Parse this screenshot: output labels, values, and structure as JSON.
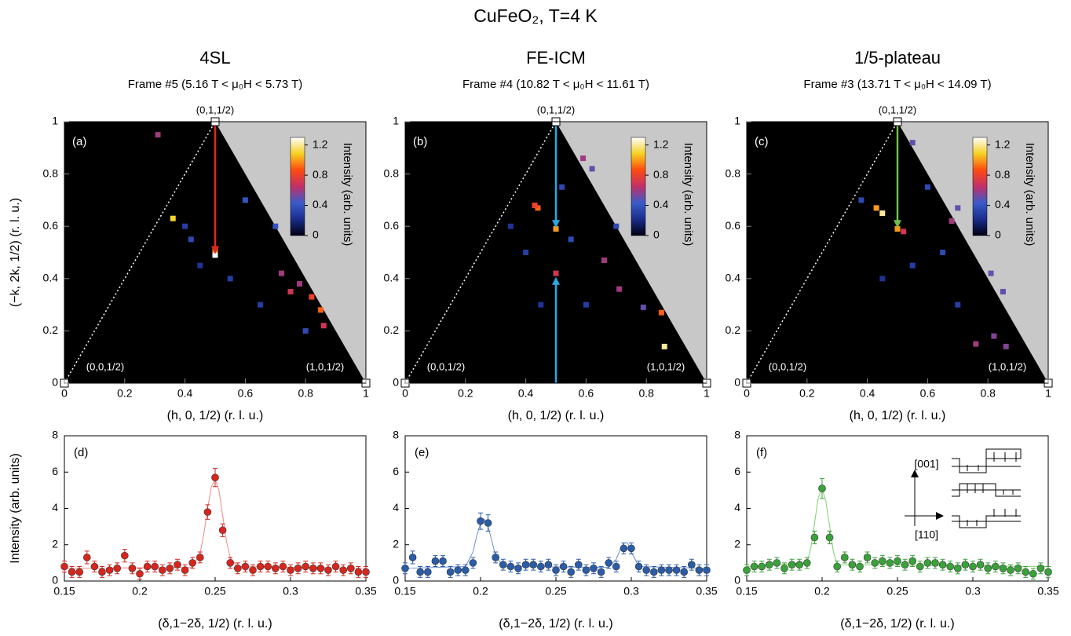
{
  "figure_title": "CuFeO₂, T=4 K",
  "chart_data": [
    {
      "type": "heatmap",
      "title": "4SL",
      "subtitle": "Frame #5 (5.16 T < μ₀H < 5.73 T)",
      "panel_label": "(a)",
      "x_label": "(h, 0, 1/2) (r. l. u.)",
      "y_label": "(−k, 2k, 1/2) (r. l. u.)",
      "xlim": [
        0,
        1
      ],
      "ylim": [
        0,
        1
      ],
      "xticks": [
        0,
        0.2,
        0.4,
        0.6,
        0.8,
        1
      ],
      "yticks": [
        0,
        0.2,
        0.4,
        0.6,
        0.8,
        1
      ],
      "corner_labels": [
        "(0,1,1/2)",
        "(0,0,1/2)",
        "(1,0,1/2)"
      ],
      "x": [
        0.36,
        0.5,
        0.31,
        0.5,
        0.72,
        0.75,
        0.78,
        0.82,
        0.85,
        0.86,
        0.42,
        0.4,
        0.6,
        0.55,
        0.45,
        0.65,
        0.7,
        0.8
      ],
      "y": [
        0.63,
        0.49,
        0.95,
        0.51,
        0.42,
        0.35,
        0.38,
        0.33,
        0.28,
        0.22,
        0.55,
        0.6,
        0.7,
        0.4,
        0.45,
        0.3,
        0.6,
        0.2
      ],
      "values": [
        1.1,
        1.3,
        0.6,
        1.0,
        0.6,
        0.7,
        0.6,
        0.8,
        0.9,
        0.7,
        0.35,
        0.3,
        0.4,
        0.3,
        0.25,
        0.3,
        0.4,
        0.35
      ],
      "arrows": [
        {
          "color": "#e52521",
          "from": [
            0.5,
            1
          ],
          "to": [
            0.5,
            0.5
          ]
        }
      ],
      "colorbar": {
        "label": "Intensity (arb. units)",
        "lim": [
          0,
          1.3
        ],
        "ticks": [
          0,
          0.4,
          0.8,
          1.2
        ],
        "colormap": [
          "#000010",
          "#1a2c8c",
          "#3a5bc8",
          "#c0306a",
          "#ff4a10",
          "#f5d020",
          "#ffffff"
        ]
      }
    },
    {
      "type": "heatmap",
      "title": "FE-ICM",
      "subtitle": "Frame #4 (10.82 T < μ₀H < 11.61 T)",
      "panel_label": "(b)",
      "x_label": "(h, 0, 1/2) (r. l. u.)",
      "xlim": [
        0,
        1
      ],
      "ylim": [
        0,
        1
      ],
      "xticks": [
        0,
        0.2,
        0.4,
        0.6,
        0.8,
        1
      ],
      "yticks": [
        0,
        0.2,
        0.4,
        0.6,
        0.8,
        1
      ],
      "corner_labels": [
        "(0,1,1/2)",
        "(0,0,1/2)",
        "(1,0,1/2)"
      ],
      "x": [
        0.44,
        0.43,
        0.5,
        0.5,
        0.59,
        0.62,
        0.66,
        0.71,
        0.85,
        0.86,
        0.79,
        0.55,
        0.4,
        0.6,
        0.45,
        0.7,
        0.52,
        0.35
      ],
      "y": [
        0.67,
        0.68,
        0.59,
        0.42,
        0.86,
        0.82,
        0.47,
        0.36,
        0.27,
        0.14,
        0.29,
        0.55,
        0.5,
        0.3,
        0.3,
        0.6,
        0.75,
        0.6
      ],
      "values": [
        0.9,
        0.8,
        1.0,
        0.7,
        0.6,
        0.5,
        0.6,
        0.6,
        0.9,
        1.2,
        0.5,
        0.35,
        0.3,
        0.3,
        0.25,
        0.35,
        0.35,
        0.25
      ],
      "arrows": [
        {
          "color": "#29a8e0",
          "from": [
            0.5,
            1
          ],
          "to": [
            0.5,
            0.6
          ]
        },
        {
          "color": "#29a8e0",
          "from": [
            0.5,
            0
          ],
          "to": [
            0.5,
            0.4
          ]
        }
      ],
      "colorbar": {
        "label": "Intensity (arb. units)",
        "lim": [
          0,
          1.3
        ],
        "ticks": [
          0,
          0.4,
          0.8,
          1.2
        ],
        "colormap": [
          "#000010",
          "#1a2c8c",
          "#3a5bc8",
          "#c0306a",
          "#ff4a10",
          "#f5d020",
          "#ffffff"
        ]
      }
    },
    {
      "type": "heatmap",
      "title": "1/5-plateau",
      "subtitle": "Frame #3 (13.71 T < μ₀H < 14.09 T)",
      "panel_label": "(c)",
      "x_label": "(h, 0, 1/2) (r. l. u.)",
      "xlim": [
        0,
        1
      ],
      "ylim": [
        0,
        1
      ],
      "xticks": [
        0,
        0.2,
        0.4,
        0.6,
        0.8,
        1
      ],
      "yticks": [
        0,
        0.2,
        0.4,
        0.6,
        0.8,
        1
      ],
      "corner_labels": [
        "(0,1,1/2)",
        "(0,0,1/2)",
        "(1,0,1/2)"
      ],
      "x": [
        0.43,
        0.45,
        0.5,
        0.52,
        0.55,
        0.68,
        0.7,
        0.76,
        0.82,
        0.86,
        0.81,
        0.85,
        0.38,
        0.6,
        0.55,
        0.7,
        0.45,
        0.65
      ],
      "y": [
        0.67,
        0.65,
        0.59,
        0.58,
        0.92,
        0.62,
        0.67,
        0.15,
        0.18,
        0.14,
        0.42,
        0.35,
        0.7,
        0.75,
        0.45,
        0.3,
        0.4,
        0.5
      ],
      "values": [
        1.0,
        1.2,
        1.0,
        0.7,
        0.5,
        0.6,
        0.5,
        0.6,
        0.55,
        0.55,
        0.5,
        0.5,
        0.35,
        0.35,
        0.3,
        0.3,
        0.25,
        0.35
      ],
      "arrows": [
        {
          "color": "#6cc04a",
          "from": [
            0.5,
            1
          ],
          "to": [
            0.5,
            0.6
          ]
        }
      ],
      "colorbar": {
        "label": "Intensity (arb. units)",
        "lim": [
          0,
          1.3
        ],
        "ticks": [
          0,
          0.4,
          0.8,
          1.2
        ],
        "colormap": [
          "#000010",
          "#1a2c8c",
          "#3a5bc8",
          "#c0306a",
          "#ff4a10",
          "#f5d020",
          "#ffffff"
        ]
      }
    },
    {
      "type": "scatter",
      "panel_label": "(d)",
      "x_label": "(δ,1−2δ, 1/2) (r. l. u.)",
      "y_label": "Intensity (arb. units)",
      "xlim": [
        0.15,
        0.35
      ],
      "ylim": [
        0,
        8
      ],
      "xticks": [
        0.15,
        0.2,
        0.25,
        0.3,
        0.35
      ],
      "yticks": [
        0,
        2,
        4,
        6,
        8
      ],
      "color": "#d7261e",
      "fit_color": "#f08a86",
      "x": [
        0.15,
        0.155,
        0.16,
        0.165,
        0.17,
        0.175,
        0.18,
        0.185,
        0.19,
        0.195,
        0.2,
        0.205,
        0.21,
        0.215,
        0.22,
        0.225,
        0.23,
        0.235,
        0.24,
        0.245,
        0.25,
        0.255,
        0.26,
        0.265,
        0.27,
        0.275,
        0.28,
        0.285,
        0.29,
        0.295,
        0.3,
        0.305,
        0.31,
        0.315,
        0.32,
        0.325,
        0.33,
        0.335,
        0.34,
        0.345,
        0.35
      ],
      "values": [
        0.8,
        0.5,
        0.5,
        1.3,
        0.8,
        0.5,
        0.6,
        0.7,
        1.4,
        0.7,
        0.4,
        0.8,
        0.8,
        0.6,
        0.7,
        0.9,
        0.6,
        1.0,
        1.3,
        3.8,
        5.7,
        2.8,
        1.0,
        0.7,
        0.8,
        0.6,
        0.8,
        0.8,
        0.7,
        0.8,
        0.6,
        0.7,
        0.8,
        0.7,
        0.7,
        0.6,
        0.8,
        0.6,
        0.7,
        0.5,
        0.5
      ],
      "errors": [
        0.3,
        0.3,
        0.3,
        0.35,
        0.3,
        0.3,
        0.3,
        0.3,
        0.35,
        0.3,
        0.3,
        0.3,
        0.3,
        0.3,
        0.3,
        0.3,
        0.3,
        0.3,
        0.3,
        0.4,
        0.5,
        0.35,
        0.3,
        0.3,
        0.3,
        0.3,
        0.3,
        0.3,
        0.3,
        0.3,
        0.3,
        0.3,
        0.3,
        0.3,
        0.3,
        0.3,
        0.3,
        0.3,
        0.3,
        0.3,
        0.3
      ],
      "fit": {
        "x": [
          0.15,
          0.235,
          0.24,
          0.2425,
          0.245,
          0.2475,
          0.25,
          0.2525,
          0.255,
          0.2575,
          0.26,
          0.265,
          0.35
        ],
        "values": [
          0.7,
          0.75,
          1.5,
          2.6,
          4.0,
          5.2,
          5.6,
          5.0,
          3.6,
          2.2,
          1.3,
          0.8,
          0.7
        ]
      }
    },
    {
      "type": "scatter",
      "panel_label": "(e)",
      "x_label": "(δ,1−2δ, 1/2) (r. l. u.)",
      "xlim": [
        0.15,
        0.35
      ],
      "ylim": [
        0,
        8
      ],
      "xticks": [
        0.15,
        0.2,
        0.25,
        0.3,
        0.35
      ],
      "yticks": [
        0,
        2,
        4,
        6,
        8
      ],
      "color": "#2a5ca8",
      "fit_color": "#6c8fd0",
      "x": [
        0.15,
        0.155,
        0.16,
        0.165,
        0.17,
        0.175,
        0.18,
        0.185,
        0.19,
        0.195,
        0.2,
        0.205,
        0.21,
        0.215,
        0.22,
        0.225,
        0.23,
        0.235,
        0.24,
        0.245,
        0.25,
        0.255,
        0.26,
        0.265,
        0.27,
        0.275,
        0.28,
        0.285,
        0.29,
        0.295,
        0.3,
        0.305,
        0.31,
        0.315,
        0.32,
        0.325,
        0.33,
        0.335,
        0.34,
        0.345,
        0.35
      ],
      "values": [
        0.7,
        1.3,
        0.5,
        0.5,
        1.1,
        1.1,
        0.5,
        0.6,
        0.6,
        1.0,
        3.3,
        3.2,
        1.3,
        0.9,
        0.8,
        0.7,
        0.9,
        0.9,
        0.8,
        0.9,
        0.6,
        0.8,
        0.5,
        0.9,
        0.6,
        0.7,
        0.5,
        1.0,
        0.8,
        1.8,
        1.8,
        0.8,
        0.6,
        0.5,
        0.6,
        0.6,
        0.6,
        0.5,
        0.9,
        0.6,
        0.6
      ],
      "errors": [
        0.3,
        0.35,
        0.3,
        0.3,
        0.3,
        0.3,
        0.3,
        0.3,
        0.3,
        0.3,
        0.45,
        0.45,
        0.3,
        0.3,
        0.3,
        0.3,
        0.3,
        0.3,
        0.3,
        0.3,
        0.3,
        0.3,
        0.3,
        0.3,
        0.3,
        0.3,
        0.3,
        0.3,
        0.3,
        0.3,
        0.3,
        0.3,
        0.3,
        0.3,
        0.3,
        0.3,
        0.3,
        0.3,
        0.3,
        0.3,
        0.3
      ],
      "fit": {
        "x": [
          0.15,
          0.19,
          0.195,
          0.1975,
          0.2,
          0.2025,
          0.205,
          0.2075,
          0.21,
          0.215,
          0.285,
          0.29,
          0.2925,
          0.295,
          0.2975,
          0.3,
          0.305,
          0.35
        ],
        "values": [
          0.7,
          0.8,
          1.6,
          2.5,
          3.2,
          3.4,
          3.0,
          2.2,
          1.4,
          0.8,
          0.75,
          1.2,
          1.7,
          2.1,
          2.1,
          1.6,
          0.8,
          0.7
        ]
      }
    },
    {
      "type": "scatter",
      "panel_label": "(f)",
      "x_label": "(δ,1−2δ, 1/2) (r. l. u.)",
      "xlim": [
        0.15,
        0.35
      ],
      "ylim": [
        0,
        8
      ],
      "xticks": [
        0.15,
        0.2,
        0.25,
        0.3,
        0.35
      ],
      "yticks": [
        0,
        2,
        4,
        6,
        8
      ],
      "color": "#3aa23a",
      "fit_color": "#7fcf6f",
      "inset_labels": [
        "[001]",
        "[110]"
      ],
      "x": [
        0.15,
        0.155,
        0.16,
        0.165,
        0.17,
        0.175,
        0.18,
        0.185,
        0.19,
        0.195,
        0.2,
        0.205,
        0.21,
        0.215,
        0.22,
        0.225,
        0.23,
        0.235,
        0.24,
        0.245,
        0.25,
        0.255,
        0.26,
        0.265,
        0.27,
        0.275,
        0.28,
        0.285,
        0.29,
        0.295,
        0.3,
        0.305,
        0.31,
        0.315,
        0.32,
        0.325,
        0.33,
        0.335,
        0.34,
        0.345,
        0.35
      ],
      "values": [
        0.6,
        0.8,
        0.8,
        0.9,
        1.0,
        0.7,
        0.9,
        0.9,
        1.0,
        2.4,
        5.1,
        2.4,
        0.8,
        1.3,
        0.9,
        0.8,
        1.3,
        1.0,
        1.1,
        1.0,
        1.1,
        0.9,
        1.1,
        0.8,
        1.0,
        1.0,
        0.9,
        0.8,
        0.7,
        0.9,
        0.8,
        0.9,
        0.7,
        0.8,
        0.7,
        0.6,
        0.7,
        0.5,
        0.4,
        0.7,
        0.5
      ],
      "errors": [
        0.3,
        0.3,
        0.3,
        0.3,
        0.3,
        0.3,
        0.3,
        0.3,
        0.3,
        0.35,
        0.55,
        0.35,
        0.3,
        0.3,
        0.3,
        0.3,
        0.3,
        0.3,
        0.3,
        0.3,
        0.3,
        0.3,
        0.3,
        0.3,
        0.3,
        0.3,
        0.3,
        0.3,
        0.3,
        0.3,
        0.3,
        0.3,
        0.3,
        0.3,
        0.3,
        0.3,
        0.3,
        0.3,
        0.3,
        0.3,
        0.3
      ],
      "fit": {
        "x": [
          0.15,
          0.19,
          0.1925,
          0.195,
          0.1975,
          0.2,
          0.2025,
          0.205,
          0.2075,
          0.21,
          0.35
        ],
        "values": [
          0.8,
          1.0,
          1.8,
          3.2,
          4.6,
          5.1,
          4.4,
          3.0,
          1.6,
          0.9,
          0.8
        ]
      }
    }
  ]
}
